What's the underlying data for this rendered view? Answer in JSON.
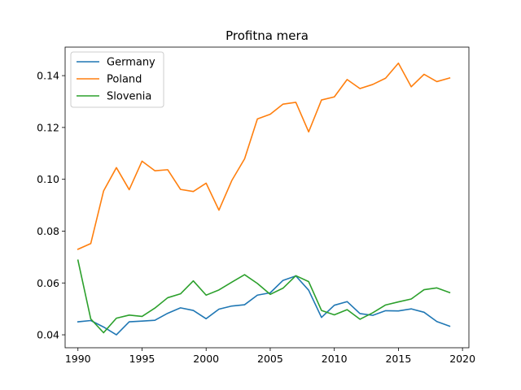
{
  "chart_data": {
    "type": "line",
    "title": "Profitna mera",
    "xlabel": "",
    "ylabel": "",
    "x": [
      1990,
      1991,
      1992,
      1993,
      1994,
      1995,
      1996,
      1997,
      1998,
      1999,
      2000,
      2001,
      2002,
      2003,
      2004,
      2005,
      2006,
      2007,
      2008,
      2009,
      2010,
      2011,
      2012,
      2013,
      2014,
      2015,
      2016,
      2017,
      2018,
      2019
    ],
    "xlim": [
      1989,
      2020.5
    ],
    "ylim": [
      0.035,
      0.151
    ],
    "xticks": [
      1990,
      1995,
      2000,
      2005,
      2010,
      2015,
      2020
    ],
    "yticks": [
      0.04,
      0.06,
      0.08,
      0.1,
      0.12,
      0.14
    ],
    "xtick_labels": [
      "1990",
      "1995",
      "2000",
      "2005",
      "2010",
      "2015",
      "2020"
    ],
    "ytick_labels": [
      "0.04",
      "0.06",
      "0.08",
      "0.10",
      "0.12",
      "0.14"
    ],
    "grid": false,
    "legend": "top-left",
    "series": [
      {
        "name": "Germany",
        "color": "#1f77b4",
        "values": [
          0.045,
          0.0455,
          0.043,
          0.04,
          0.045,
          0.0453,
          0.0456,
          0.0483,
          0.0504,
          0.0494,
          0.0462,
          0.0499,
          0.0511,
          0.0516,
          0.0553,
          0.0562,
          0.061,
          0.0627,
          0.0572,
          0.0467,
          0.0514,
          0.0528,
          0.0482,
          0.0475,
          0.0493,
          0.0492,
          0.05,
          0.0487,
          0.0451,
          0.0433
        ]
      },
      {
        "name": "Poland",
        "color": "#ff7f0e",
        "values": [
          0.073,
          0.0752,
          0.0955,
          0.1045,
          0.096,
          0.107,
          0.1033,
          0.1037,
          0.0961,
          0.0953,
          0.0985,
          0.0881,
          0.0995,
          0.1079,
          0.1233,
          0.1251,
          0.129,
          0.1297,
          0.1183,
          0.1306,
          0.1318,
          0.1385,
          0.135,
          0.1366,
          0.139,
          0.1448,
          0.1357,
          0.1405,
          0.1377,
          0.1391
        ]
      },
      {
        "name": "Slovenia",
        "color": "#2ca02c",
        "values": [
          0.0688,
          0.0461,
          0.0408,
          0.0464,
          0.0476,
          0.0471,
          0.0503,
          0.0543,
          0.0558,
          0.0608,
          0.0553,
          0.0573,
          0.0603,
          0.0632,
          0.0598,
          0.0556,
          0.058,
          0.0628,
          0.0605,
          0.0494,
          0.0477,
          0.0497,
          0.046,
          0.0485,
          0.0515,
          0.0527,
          0.0538,
          0.0574,
          0.0581,
          0.0563
        ]
      }
    ]
  }
}
